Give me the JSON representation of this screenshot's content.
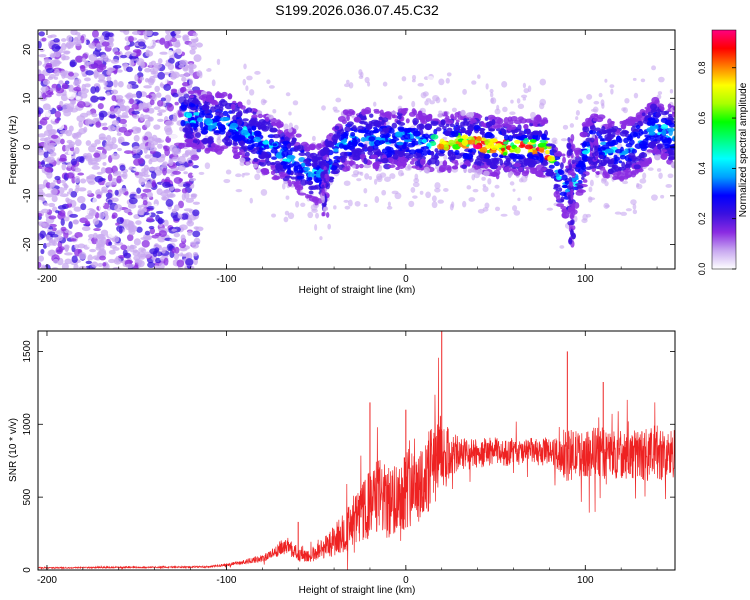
{
  "title": "S199.2026.036.07.45.C32",
  "chart_data": [
    {
      "type": "heatmap",
      "name": "spectrogram",
      "xlabel": "Height of straight line (km)",
      "ylabel": "Frequency (Hz)",
      "xlim": [
        -205,
        150
      ],
      "ylim": [
        -25,
        24
      ],
      "xticks": [
        -200,
        -100,
        0,
        100
      ],
      "xtick_labels": [
        "-200",
        "-100",
        "0",
        "100"
      ],
      "yticks": [
        20,
        10,
        0,
        -10,
        -20
      ],
      "ytick_labels": [
        "20",
        "10",
        "0",
        "-10",
        "-20"
      ],
      "ridge": {
        "x": [
          -120,
          -110,
          -100,
          -90,
          -80,
          -70,
          -60,
          -50,
          -45,
          -40,
          -35,
          -30,
          -20,
          -10,
          0,
          10,
          20,
          30,
          40,
          50,
          60,
          70,
          78,
          82,
          86,
          90,
          95,
          100,
          105,
          110,
          120,
          130,
          140,
          150
        ],
        "freq": [
          6,
          5,
          5,
          3,
          1,
          -1,
          -3,
          -6,
          -5,
          -2,
          1,
          2,
          2,
          1,
          2,
          1,
          1,
          1,
          1,
          0,
          0,
          0,
          0,
          -3,
          -6,
          -9,
          -7,
          -1,
          1,
          0,
          -1,
          1,
          4,
          2
        ]
      },
      "colorbar": {
        "label": "Normalized spectral amplitude",
        "range": [
          0,
          0.95
        ],
        "ticks": [
          0,
          0.2,
          0.4,
          0.6,
          0.8
        ],
        "tick_labels": [
          "0.0",
          "0.2",
          "0.4",
          "0.6",
          "0.8"
        ],
        "colors": [
          "#ffffff",
          "#c8a8f0",
          "#8a2be2",
          "#3a10e0",
          "#0000ff",
          "#00a0ff",
          "#00ffff",
          "#00ff80",
          "#00ff00",
          "#aaff00",
          "#ffff00",
          "#ff8000",
          "#ff0000",
          "#ff0080"
        ]
      }
    },
    {
      "type": "line",
      "name": "snr",
      "xlabel": "Height of straight line (km)",
      "ylabel": "SNR (10 * v/v)",
      "xlim": [
        -205,
        150
      ],
      "ylim": [
        0,
        1640
      ],
      "xticks": [
        -200,
        -100,
        0,
        100
      ],
      "xtick_labels": [
        "-200",
        "-100",
        "0",
        "100"
      ],
      "yticks": [
        0,
        500,
        1000,
        1500
      ],
      "ytick_labels": [
        "0",
        "500",
        "1000",
        "1500"
      ],
      "series": [
        {
          "name": "SNR",
          "color": "#ee2222",
          "x": [
            -205,
            -190,
            -170,
            -150,
            -130,
            -110,
            -100,
            -90,
            -80,
            -75,
            -70,
            -65,
            -60,
            -55,
            -50,
            -45,
            -40,
            -35,
            -30,
            -25,
            -20,
            -15,
            -10,
            -5,
            0,
            5,
            10,
            15,
            20,
            25,
            30,
            35,
            40,
            45,
            50,
            55,
            60,
            65,
            70,
            75,
            80,
            85,
            90,
            95,
            100,
            105,
            110,
            115,
            120,
            125,
            130,
            135,
            140,
            145,
            150
          ],
          "values": [
            15,
            15,
            18,
            18,
            20,
            22,
            35,
            55,
            80,
            110,
            150,
            170,
            100,
            90,
            120,
            160,
            200,
            260,
            300,
            380,
            450,
            520,
            450,
            500,
            560,
            620,
            600,
            720,
            800,
            780,
            800,
            790,
            800,
            810,
            820,
            800,
            810,
            800,
            820,
            800,
            820,
            790,
            780,
            800,
            790,
            810,
            800,
            790,
            800,
            780,
            800,
            790,
            810,
            780,
            800
          ],
          "spread": [
            4,
            4,
            5,
            5,
            5,
            6,
            10,
            15,
            25,
            35,
            50,
            70,
            45,
            40,
            60,
            80,
            110,
            140,
            170,
            200,
            240,
            260,
            250,
            260,
            280,
            300,
            280,
            300,
            280,
            160,
            120,
            110,
            100,
            100,
            90,
            90,
            90,
            90,
            90,
            90,
            90,
            110,
            180,
            160,
            150,
            180,
            180,
            170,
            170,
            170,
            180,
            180,
            190,
            180,
            180
          ],
          "peaks": [
            {
              "x": 20,
              "y": 1640
            },
            {
              "x": 90,
              "y": 1500
            },
            {
              "x": 110,
              "y": 1290
            },
            {
              "x": -20,
              "y": 1150
            },
            {
              "x": 0,
              "y": 1100
            },
            {
              "x": -60,
              "y": 330
            }
          ]
        }
      ]
    }
  ]
}
